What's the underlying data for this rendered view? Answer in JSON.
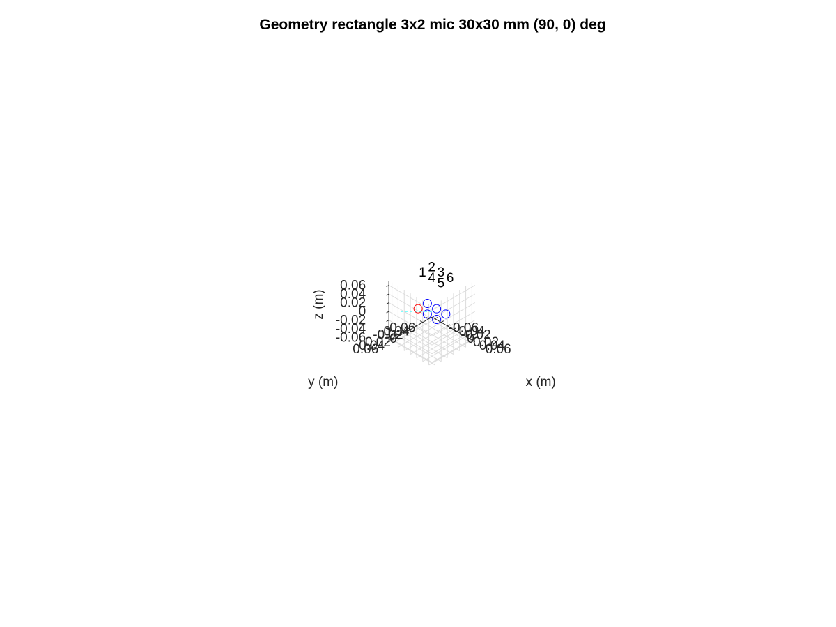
{
  "chart_data": {
    "type": "scatter",
    "title": "Geometry rectangle 3x2 mic 30x30 mm (90, 0) deg",
    "xlabel": "x (m)",
    "ylabel": "y (m)",
    "zlabel": "z (m)",
    "xlim": [
      -0.07,
      0.07
    ],
    "ylim": [
      -0.07,
      0.07
    ],
    "zlim": [
      -0.07,
      0.07
    ],
    "x_ticks": [
      -0.06,
      -0.04,
      -0.02,
      0,
      0.02,
      0.04,
      0.06
    ],
    "y_ticks": [
      -0.06,
      -0.04,
      -0.02,
      0,
      0.02,
      0.04,
      0.06
    ],
    "z_ticks": [
      -0.06,
      -0.04,
      -0.02,
      0,
      0.02,
      0.04,
      0.06
    ],
    "x_tick_labels": [
      "-0.06",
      "-0.04",
      "-0.02",
      "0",
      "0.02",
      "0.04",
      "0.06"
    ],
    "y_tick_labels": [
      "-0.06",
      "-0.04",
      "-0.02",
      "0",
      "0.02",
      "0.04",
      "0.06"
    ],
    "z_tick_labels": [
      "-0.06",
      "-0.04",
      "-0.02",
      "0",
      "0.02",
      "0.04",
      "0.06"
    ],
    "grid": true,
    "view": {
      "azimuth_deg": -45,
      "elevation_deg": 35.264
    },
    "colors": {
      "reference_marker": "#ff0000",
      "mic_marker": "#0000ff",
      "direction_line": "#00ffff",
      "grid": "#dcdcdc",
      "axis": "#262626"
    },
    "mics": [
      {
        "label": "1",
        "x": -0.03,
        "y": 0.015,
        "z": 0,
        "role": "reference"
      },
      {
        "label": "2",
        "x": -0.03,
        "y": -0.015,
        "z": 0,
        "role": "mic"
      },
      {
        "label": "3",
        "x": 0,
        "y": -0.015,
        "z": 0,
        "role": "mic"
      },
      {
        "label": "4",
        "x": 0,
        "y": 0.015,
        "z": 0,
        "role": "mic"
      },
      {
        "label": "5",
        "x": 0.03,
        "y": 0.015,
        "z": 0,
        "role": "mic"
      },
      {
        "label": "6",
        "x": 0.03,
        "y": -0.015,
        "z": 0,
        "role": "mic"
      }
    ],
    "direction_line": {
      "style": "dashed",
      "from": {
        "x": 0,
        "y": 0,
        "z": 0
      },
      "to": {
        "x": -0.05,
        "y": 0.05,
        "z": 0
      }
    }
  }
}
